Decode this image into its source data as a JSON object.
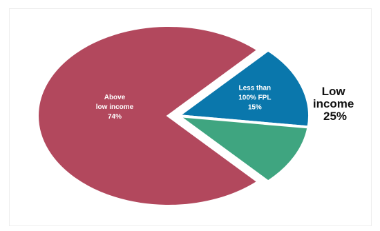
{
  "chart_data": {
    "type": "pie",
    "title": "",
    "slices": [
      {
        "key": "above",
        "label_lines": [
          "Above",
          "low income",
          "74%"
        ],
        "value": 74,
        "color": "#b2485d"
      },
      {
        "key": "fpl",
        "label_lines": [
          "Less than",
          "100% FPL",
          "15%"
        ],
        "value": 15,
        "color": "#0a77ac"
      },
      {
        "key": "other",
        "label_lines": [],
        "value": 11,
        "color": "#3fa580"
      }
    ],
    "group_label": {
      "lines": [
        "Low",
        "income",
        "25%"
      ],
      "slices": [
        "fpl",
        "other"
      ]
    }
  }
}
